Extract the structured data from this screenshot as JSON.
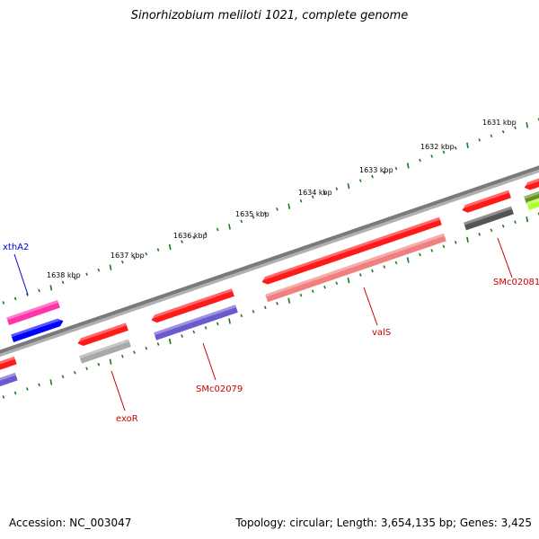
{
  "title": "Sinorhizobium meliloti 1021, complete genome",
  "footer": {
    "accession": "Accession: NC_003047",
    "summary": "Topology: circular; Length: 3,654,135 bp; Genes: 3,425"
  },
  "ruler": [
    "1631 kbp",
    "1632 kbp",
    "1633 kbp",
    "1634 kbp",
    "1635 kbp",
    "1636 kbp",
    "1637 kbp",
    "1638 kbp"
  ],
  "gene_labels": {
    "xthA2": "xthA2",
    "exoR": "exoR",
    "SMc02079": "SMc02079",
    "valS": "valS",
    "SMc02081": "SMc02081"
  },
  "colors": {
    "backbone": "#808080",
    "tick": "#1a7a1a",
    "red": "#ff1a1a",
    "label_red": "#cc0000",
    "label_blue": "#0000cc",
    "pink": "#ff33aa",
    "blue": "#0000ff",
    "light_red": "#f08080",
    "purple": "#6a5acd",
    "gray": "#a9a9a9",
    "dark_gray": "#555555",
    "olive": "#6b8e23",
    "lime": "#adff2f"
  }
}
